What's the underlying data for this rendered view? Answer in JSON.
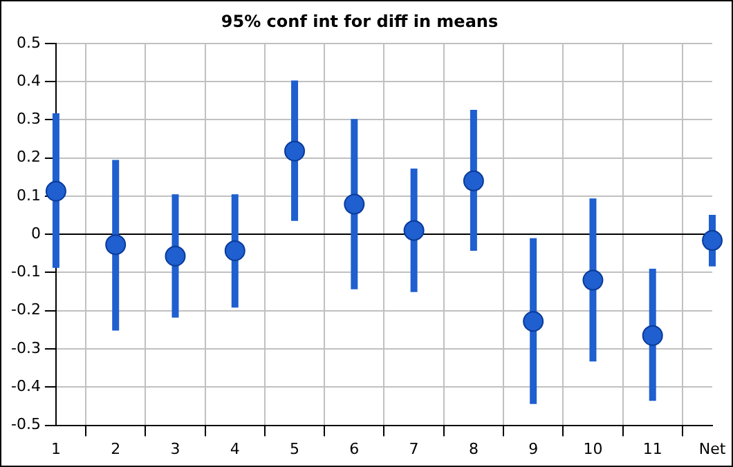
{
  "chart_data": {
    "type": "scatter",
    "title": "95% conf int for diff in means",
    "categories": [
      "1",
      "2",
      "3",
      "4",
      "5",
      "6",
      "7",
      "8",
      "9",
      "10",
      "11",
      "Net"
    ],
    "series": [
      {
        "color": "#1f5fcf",
        "values": [
          0.113,
          -0.027,
          -0.057,
          -0.043,
          0.218,
          0.079,
          0.01,
          0.14,
          -0.228,
          -0.12,
          -0.265,
          -0.016
        ],
        "errors": [
          [
            -0.088,
            0.317
          ],
          [
            -0.252,
            0.195
          ],
          [
            -0.218,
            0.105
          ],
          [
            -0.192,
            0.105
          ],
          [
            0.035,
            0.403
          ],
          [
            -0.144,
            0.302
          ],
          [
            -0.151,
            0.172
          ],
          [
            -0.043,
            0.326
          ],
          [
            -0.444,
            -0.01
          ],
          [
            -0.333,
            0.094
          ],
          [
            -0.436,
            -0.09
          ],
          [
            -0.084,
            0.051
          ]
        ]
      }
    ],
    "ylim": [
      -0.5,
      0.5
    ],
    "yticks": [
      -0.5,
      -0.4,
      -0.3,
      -0.2,
      -0.1,
      0,
      0.1,
      0.2,
      0.3,
      0.4,
      0.5
    ],
    "grid": true,
    "legend": false,
    "marker": "circle"
  }
}
